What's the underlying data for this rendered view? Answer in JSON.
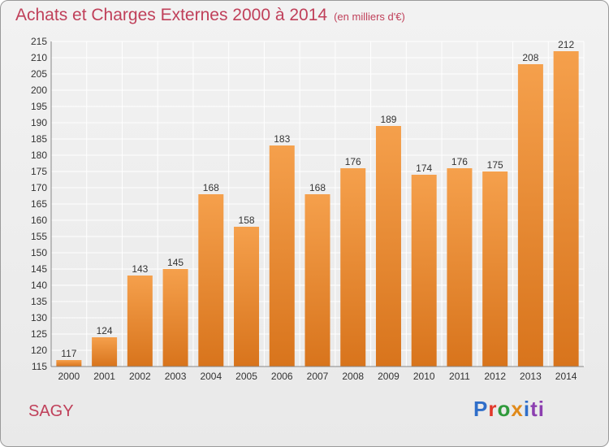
{
  "header": {
    "title": "Achats et Charges Externes 2000 à 2014",
    "subtitle": "(en milliers d'€)"
  },
  "footer": {
    "city": "SAGY",
    "logo_letters": [
      "P",
      "r",
      "o",
      "x",
      "i",
      "ti"
    ]
  },
  "colors": {
    "bar_light": "#f5a04c",
    "bar_dark": "#d8741c",
    "title": "#c0405a",
    "grid": "#ffffff"
  },
  "chart_data": {
    "type": "bar",
    "title": "Achats et Charges Externes 2000 à 2014",
    "subtitle": "(en milliers d'€)",
    "xlabel": "",
    "ylabel": "",
    "categories": [
      "2000",
      "2001",
      "2002",
      "2003",
      "2004",
      "2005",
      "2006",
      "2007",
      "2008",
      "2009",
      "2010",
      "2011",
      "2012",
      "2013",
      "2014"
    ],
    "values": [
      117,
      124,
      143,
      145,
      168,
      158,
      183,
      168,
      176,
      189,
      174,
      176,
      175,
      208,
      212
    ],
    "ylim": [
      115,
      215
    ],
    "yticks": [
      115,
      120,
      125,
      130,
      135,
      140,
      145,
      150,
      155,
      160,
      165,
      170,
      175,
      180,
      185,
      190,
      195,
      200,
      205,
      210,
      215
    ],
    "grid": true,
    "legend": "none"
  }
}
